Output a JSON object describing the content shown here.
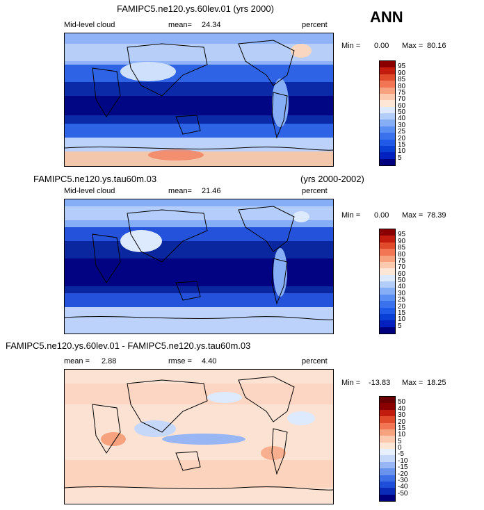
{
  "header": {
    "season": "ANN"
  },
  "panels": [
    {
      "title": "FAMIPC5.ne120.ys.60lev.01 (yrs 2000)",
      "title_right": "",
      "variable": "Mid-level cloud",
      "stat1_label": "mean=",
      "stat1_value": "24.34",
      "stat2_label": "",
      "stat2_value": "",
      "units": "percent",
      "min_label": "Min =",
      "min_value": "0.00",
      "max_label": "Max =",
      "max_value": "80.16"
    },
    {
      "title": "FAMIPC5.ne120.ys.tau60m.03",
      "title_right": "(yrs 2000-2002)",
      "variable": "Mid-level cloud",
      "stat1_label": "mean=",
      "stat1_value": "21.46",
      "stat2_label": "",
      "stat2_value": "",
      "units": "percent",
      "min_label": "Min =",
      "min_value": "0.00",
      "max_label": "Max =",
      "max_value": "78.39"
    },
    {
      "title": "FAMIPC5.ne120.ys.60lev.01 - FAMIPC5.ne120.ys.tau60m.03",
      "title_right": "",
      "variable": "",
      "stat1_label": "mean =",
      "stat1_value": "2.88",
      "stat2_label": "rmse =",
      "stat2_value": "4.40",
      "units": "percent",
      "min_label": "Min =",
      "min_value": "-13.83",
      "max_label": "Max =",
      "max_value": "18.25"
    }
  ],
  "chart_data": [
    {
      "type": "heatmap",
      "title": "FAMIPC5.ne120.ys.60lev.01 (yrs 2000)",
      "variable": "Mid-level cloud",
      "units": "percent",
      "mean": 24.34,
      "min": 0.0,
      "max": 80.16,
      "colorbar_levels": [
        "5",
        "10",
        "15",
        "20",
        "25",
        "30",
        "40",
        "50",
        "60",
        "70",
        "75",
        "80",
        "85",
        "90",
        "95"
      ],
      "colorbar_colors": [
        "#00007f",
        "#0020c0",
        "#0a3fd6",
        "#1f5ae8",
        "#3a72ee",
        "#5b8ef3",
        "#86aef7",
        "#b3cdf9",
        "#dde9fc",
        "#fde6d6",
        "#fbc9ae",
        "#f7a27e",
        "#f27654",
        "#e04b2c",
        "#c21c0e",
        "#8a0000"
      ]
    },
    {
      "type": "heatmap",
      "title": "FAMIPC5.ne120.ys.tau60m.03",
      "subtitle": "(yrs 2000-2002)",
      "variable": "Mid-level cloud",
      "units": "percent",
      "mean": 21.46,
      "min": 0.0,
      "max": 78.39,
      "colorbar_levels": [
        "5",
        "10",
        "15",
        "20",
        "25",
        "30",
        "40",
        "50",
        "60",
        "70",
        "75",
        "80",
        "85",
        "90",
        "95"
      ],
      "colorbar_colors": [
        "#00007f",
        "#0020c0",
        "#0a3fd6",
        "#1f5ae8",
        "#3a72ee",
        "#5b8ef3",
        "#86aef7",
        "#b3cdf9",
        "#dde9fc",
        "#fde6d6",
        "#fbc9ae",
        "#f7a27e",
        "#f27654",
        "#e04b2c",
        "#c21c0e",
        "#8a0000"
      ]
    },
    {
      "type": "heatmap",
      "title": "FAMIPC5.ne120.ys.60lev.01 - FAMIPC5.ne120.ys.tau60m.03",
      "units": "percent",
      "mean": 2.88,
      "rmse": 4.4,
      "min": -13.83,
      "max": 18.25,
      "colorbar_levels": [
        "-50",
        "-40",
        "-30",
        "-20",
        "-15",
        "-10",
        "-5",
        "0",
        "5",
        "10",
        "15",
        "20",
        "30",
        "40",
        "50"
      ],
      "colorbar_colors": [
        "#00007f",
        "#0a2ab8",
        "#1f4fd8",
        "#3d6fe6",
        "#6a93ee",
        "#98b6f4",
        "#c6d8fa",
        "#e8f0fd",
        "#fde6d6",
        "#fbc9ae",
        "#f7a27e",
        "#f27654",
        "#e04b2c",
        "#c21c0e",
        "#8a0000",
        "#6a0000"
      ]
    }
  ]
}
